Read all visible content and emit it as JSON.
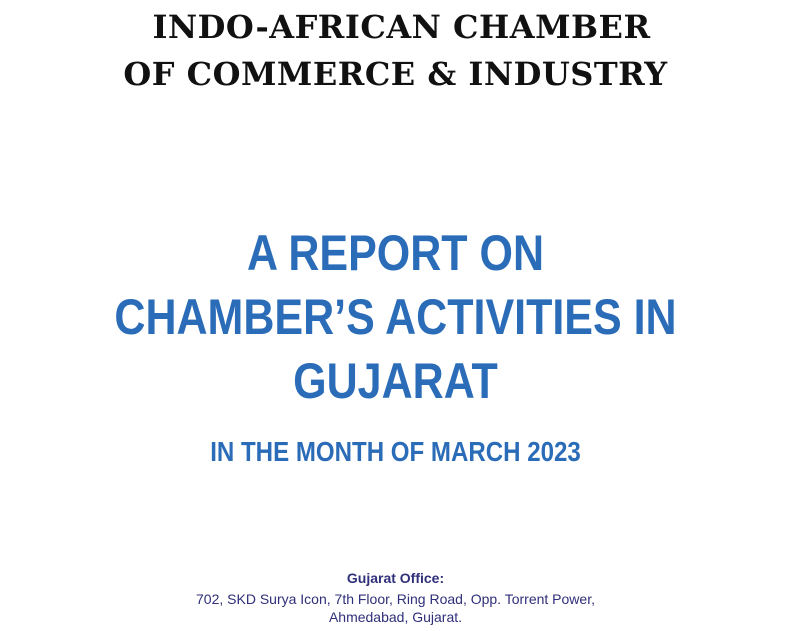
{
  "header": {
    "org_line_1": "INDO-AFRICAN CHAMBER",
    "org_line_2": "OF COMMERCE & INDUSTRY"
  },
  "report": {
    "title_line_1": "A REPORT ON",
    "title_line_2": "CHAMBER’S ACTIVITIES IN",
    "title_line_3": "GUJARAT",
    "subtitle": "IN THE MONTH OF MARCH 2023"
  },
  "office": {
    "heading": "Gujarat Office:",
    "address_line_1": "702, SKD Surya Icon, 7th Floor, Ring Road, Opp. Torrent Power,",
    "address_line_2": "Ahmedabad, Gujarat."
  },
  "colors": {
    "title_blue": "#2b6cb8",
    "header_black": "#111111",
    "office_navy": "#2f2f7a"
  }
}
